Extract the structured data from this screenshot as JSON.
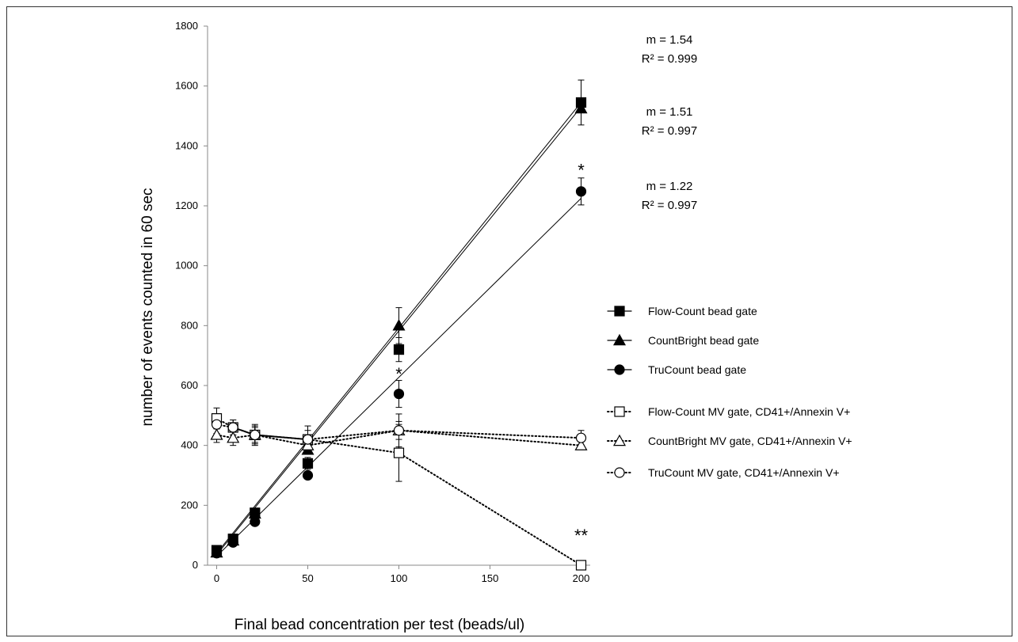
{
  "chart_data": {
    "type": "line",
    "title": "",
    "xlabel": "Final bead concentration per test  (beads/ul)",
    "ylabel": "number of events counted in 60 sec",
    "x_ticks": [
      "0",
      "50",
      "100",
      "150",
      "200"
    ],
    "x_tick_values": [
      0,
      50,
      100,
      150,
      200
    ],
    "y_ticks": [
      "0",
      "200",
      "400",
      "600",
      "800",
      "1000",
      "1200",
      "1400",
      "1600",
      "1800"
    ],
    "y_tick_values": [
      0,
      200,
      400,
      600,
      800,
      1000,
      1200,
      1400,
      1600,
      1800
    ],
    "xlim": [
      -5,
      205
    ],
    "ylim": [
      0,
      1800
    ],
    "grid": false,
    "legend_position": "right",
    "series": [
      {
        "name": "Flow-Count bead gate",
        "marker": "square-filled",
        "line": "solid",
        "x": [
          0,
          9,
          21,
          50,
          100,
          200
        ],
        "y": [
          50,
          88,
          175,
          340,
          720,
          1545
        ],
        "err": [
          0,
          0,
          0,
          20,
          40,
          75
        ],
        "fit": [
          [
            0,
            40
          ],
          [
            200,
            1545
          ]
        ]
      },
      {
        "name": "CountBright bead gate",
        "marker": "triangle-filled",
        "line": "solid",
        "x": [
          0,
          9,
          21,
          50,
          100,
          200
        ],
        "y": [
          42,
          82,
          172,
          385,
          800,
          1525
        ],
        "err": [
          0,
          0,
          0,
          0,
          60,
          0
        ],
        "fit": [
          [
            0,
            35
          ],
          [
            200,
            1530
          ]
        ]
      },
      {
        "name": "TruCount bead gate",
        "marker": "circle-filled",
        "line": "solid",
        "x": [
          0,
          9,
          21,
          50,
          100,
          200
        ],
        "y": [
          40,
          76,
          145,
          300,
          572,
          1248
        ],
        "err": [
          0,
          0,
          0,
          0,
          45,
          45
        ],
        "fit": [
          [
            0,
            30
          ],
          [
            200,
            1225
          ]
        ]
      },
      {
        "name": "Flow-Count MV gate, CD41+/Annexin V+",
        "marker": "square-open",
        "line": "dotted",
        "x": [
          0,
          9,
          21,
          50,
          100,
          200
        ],
        "y": [
          490,
          460,
          435,
          420,
          375,
          0
        ],
        "err": [
          35,
          25,
          35,
          45,
          95,
          0
        ]
      },
      {
        "name": "CountBright MV gate, CD41+/Annexin V+",
        "marker": "triangle-open",
        "line": "dotted",
        "x": [
          0,
          9,
          21,
          50,
          100,
          200
        ],
        "y": [
          435,
          425,
          435,
          400,
          450,
          400
        ],
        "err": [
          25,
          25,
          30,
          30,
          55,
          0
        ]
      },
      {
        "name": "TruCount MV gate, CD41+/Annexin V+",
        "marker": "circle-open",
        "line": "dotted",
        "x": [
          0,
          9,
          21,
          50,
          100,
          200
        ],
        "y": [
          470,
          460,
          435,
          420,
          450,
          425
        ],
        "err": [
          30,
          25,
          25,
          30,
          30,
          25
        ]
      }
    ],
    "annotations": [
      {
        "text": "m = 1.54",
        "group": 0
      },
      {
        "text": "R² = 0.999",
        "group": 0
      },
      {
        "text": "m = 1.51",
        "group": 1
      },
      {
        "text": "R² = 0.997",
        "group": 1
      },
      {
        "text": "m = 1.22",
        "group": 2
      },
      {
        "text": "R² = 0.997",
        "group": 2
      }
    ],
    "significance_marks": [
      {
        "text": "*",
        "x": 100,
        "y": 640
      },
      {
        "text": "*",
        "x": 200,
        "y": 1320
      },
      {
        "text": "**",
        "x": 200,
        "y": 100
      }
    ]
  }
}
